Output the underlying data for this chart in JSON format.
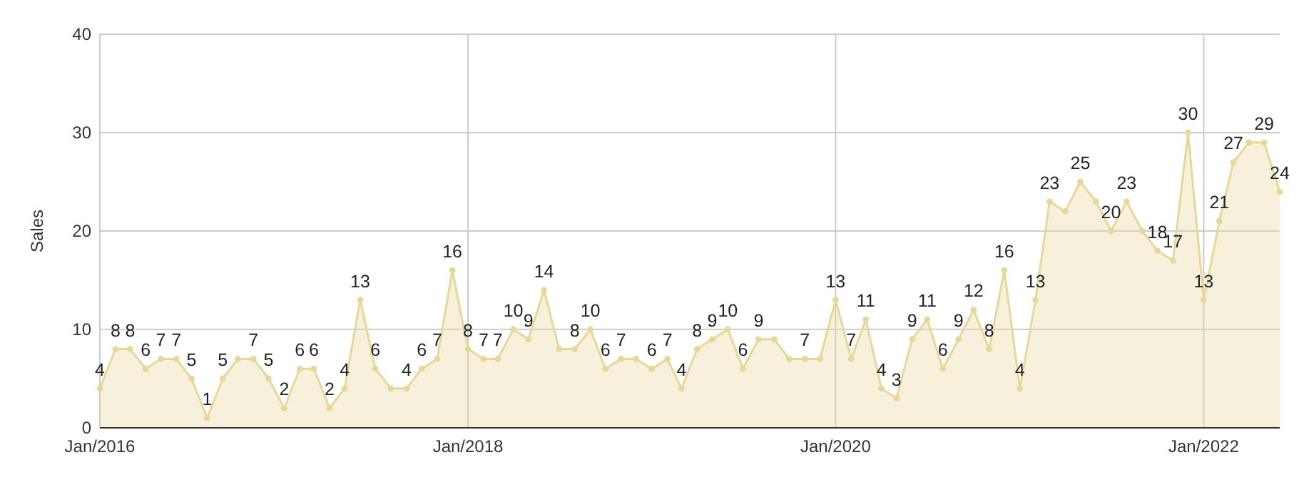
{
  "chart_data": {
    "type": "area",
    "ylabel": "Sales",
    "x": [
      "2016-01",
      "2016-02",
      "2016-03",
      "2016-04",
      "2016-05",
      "2016-06",
      "2016-07",
      "2016-08",
      "2016-09",
      "2016-10",
      "2016-11",
      "2016-12",
      "2017-01",
      "2017-02",
      "2017-03",
      "2017-04",
      "2017-05",
      "2017-06",
      "2017-07",
      "2017-08",
      "2017-09",
      "2017-10",
      "2017-11",
      "2017-12",
      "2018-01",
      "2018-02",
      "2018-03",
      "2018-04",
      "2018-05",
      "2018-06",
      "2018-07",
      "2018-08",
      "2018-09",
      "2018-10",
      "2018-11",
      "2018-12",
      "2019-01",
      "2019-02",
      "2019-03",
      "2019-04",
      "2019-05",
      "2019-06",
      "2019-07",
      "2019-08",
      "2019-09",
      "2019-10",
      "2019-11",
      "2019-12",
      "2020-01",
      "2020-02",
      "2020-03",
      "2020-04",
      "2020-05",
      "2020-06",
      "2020-07",
      "2020-08",
      "2020-09",
      "2020-10",
      "2020-11",
      "2020-12",
      "2021-01",
      "2021-02",
      "2021-03",
      "2021-04",
      "2021-05",
      "2021-06",
      "2021-07",
      "2021-08",
      "2021-09",
      "2021-10",
      "2021-11",
      "2021-12",
      "2022-01",
      "2022-02",
      "2022-03",
      "2022-04",
      "2022-05",
      "2022-06"
    ],
    "series": [
      {
        "color": "#e8d79a",
        "values": [
          4,
          8,
          8,
          6,
          7,
          7,
          5,
          1,
          5,
          7,
          7,
          5,
          2,
          6,
          6,
          2,
          4,
          13,
          6,
          4,
          4,
          6,
          7,
          16,
          8,
          7,
          7,
          10,
          9,
          14,
          8,
          8,
          10,
          6,
          7,
          7,
          6,
          7,
          4,
          8,
          9,
          10,
          6,
          9,
          9,
          7,
          7,
          7,
          13,
          7,
          11,
          4,
          3,
          9,
          11,
          6,
          9,
          12,
          8,
          16,
          4,
          13,
          23,
          22,
          25,
          23,
          20,
          23,
          20,
          18,
          17,
          30,
          13,
          21,
          27,
          29,
          29,
          24
        ],
        "value_labels": [
          "4",
          "8",
          "8",
          "6",
          "7",
          "7",
          "5",
          "1",
          "5",
          null,
          "7",
          "5",
          "2",
          "6",
          "6",
          "2",
          "4",
          "13",
          "6",
          null,
          "4",
          "6",
          "7",
          "16",
          "8",
          "7",
          "7",
          "10",
          "9",
          "14",
          null,
          "8",
          "10",
          "6",
          "7",
          null,
          "6",
          "7",
          "4",
          "8",
          "9",
          "10",
          "6",
          "9",
          null,
          null,
          "7",
          null,
          "13",
          "7",
          "11",
          "4",
          "3",
          "9",
          "11",
          "6",
          "9",
          "12",
          "8",
          "16",
          "4",
          "13",
          "23",
          null,
          "25",
          null,
          "20",
          "23",
          null,
          "18",
          "17",
          "30",
          "13",
          "21",
          "27",
          null,
          "29",
          "24"
        ]
      }
    ],
    "xlim": [
      "2016-01",
      "2022-06"
    ],
    "xticks": [
      {
        "value": "2016-01",
        "label": "Jan/2016"
      },
      {
        "value": "2018-01",
        "label": "Jan/2018"
      },
      {
        "value": "2020-01",
        "label": "Jan/2020"
      },
      {
        "value": "2022-01",
        "label": "Jan/2022"
      }
    ],
    "ylim": [
      0,
      40
    ],
    "yticks": [
      0,
      10,
      20,
      30,
      40
    ],
    "grid": true,
    "marker": "circle"
  }
}
